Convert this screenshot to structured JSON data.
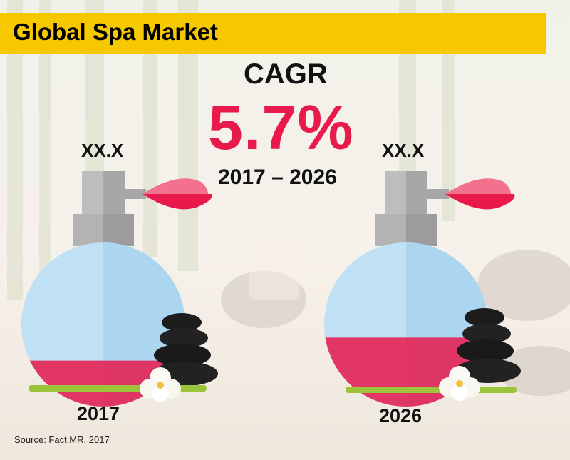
{
  "title": "Global Spa Market",
  "cagr": {
    "label": "CAGR",
    "value": "5.7%",
    "period": "2017 – 2026"
  },
  "source": "Source: Fact.MR, 2017",
  "colors": {
    "title_bar": "#f6c800",
    "cagr_value": "#e8194b",
    "liquid": "#e8194b",
    "bottle": "#bfe0f5"
  },
  "chart_data": {
    "type": "bar",
    "title": "Global Spa Market",
    "categories": [
      "2017",
      "2026"
    ],
    "value_labels": [
      "XX.X",
      "XX.X"
    ],
    "fill_levels": [
      0.28,
      0.42
    ],
    "cagr": "5.7%",
    "period": "2017 – 2026"
  },
  "bottles": [
    {
      "year": "2017",
      "value_label": "XX.X"
    },
    {
      "year": "2026",
      "value_label": "XX.X"
    }
  ]
}
